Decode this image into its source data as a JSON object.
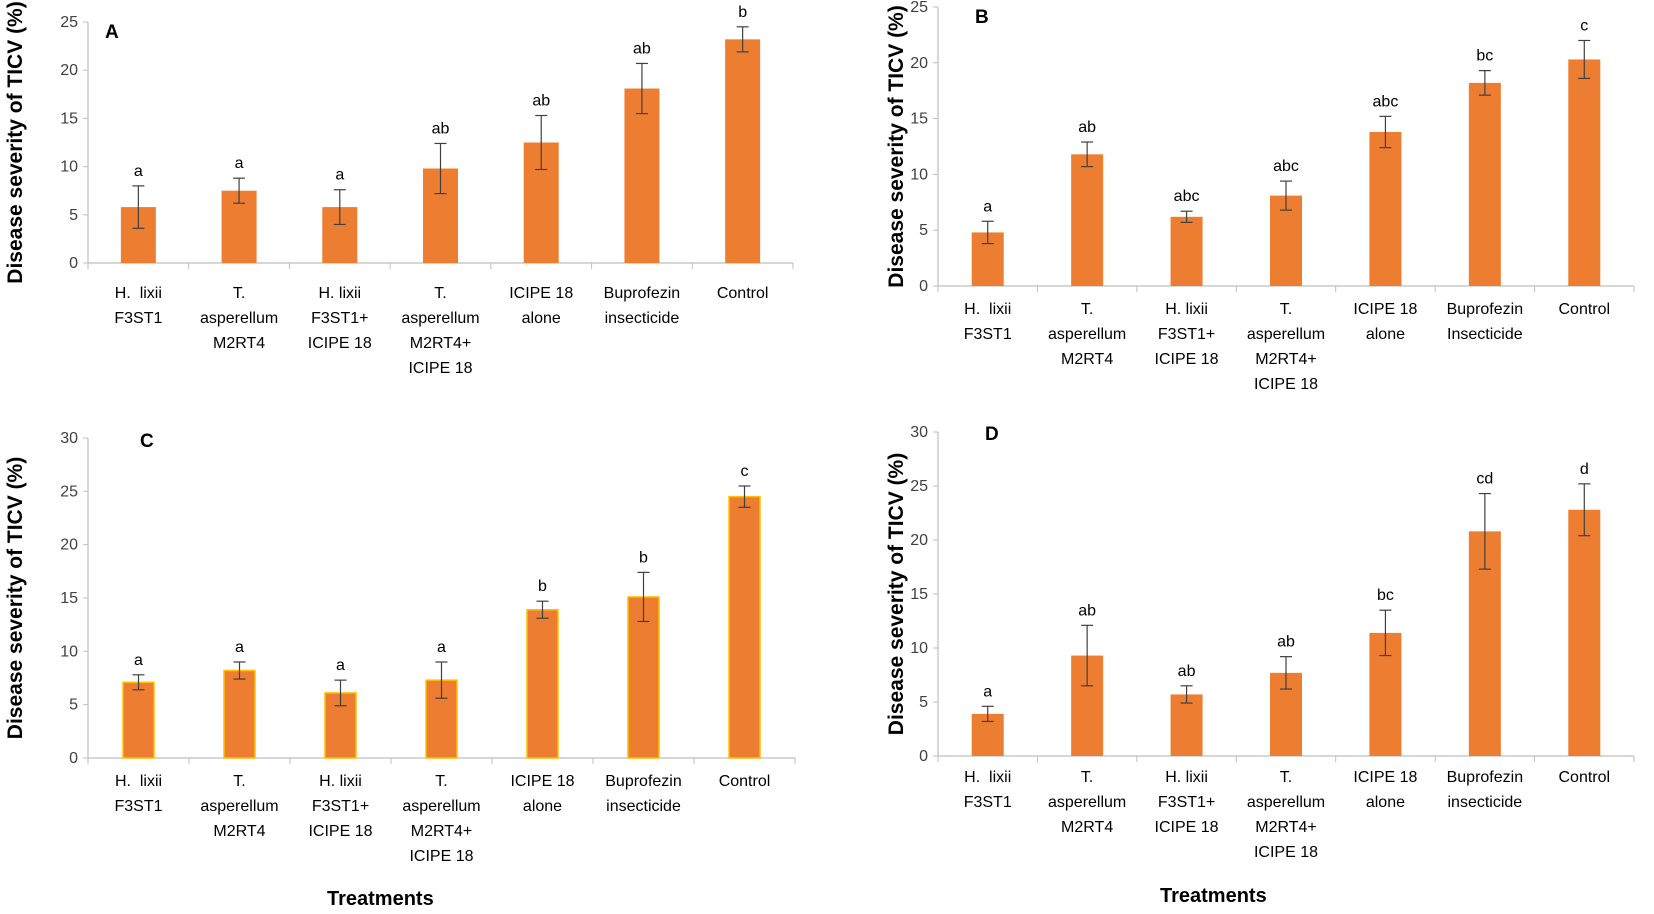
{
  "figure": {
    "bar_color": "#ED7D31",
    "bar_edge_color_C": "#FFC000",
    "x_title": "Treatments",
    "y_title_A": "Disease severity of TICV  (%)",
    "y_title": "Disease severity of TICV (%)"
  },
  "chart_data": [
    {
      "panel": "A",
      "type": "bar",
      "ylabel": "Disease severity of TICV  (%)",
      "xlabel": "",
      "ylim": [
        0,
        25
      ],
      "yticks": [
        0,
        5,
        10,
        15,
        20,
        25
      ],
      "categories": [
        [
          "H.  lixii",
          "F3ST1"
        ],
        [
          "T.",
          "asperellum",
          "M2RT4"
        ],
        [
          "H. lixii",
          "F3ST1+",
          "ICIPE 18"
        ],
        [
          "T.",
          "asperellum",
          "M2RT4+",
          "ICIPE 18"
        ],
        [
          "ICIPE 18",
          "alone"
        ],
        [
          "Buprofezin",
          "insecticide"
        ],
        [
          "Control"
        ]
      ],
      "values": [
        5.8,
        7.5,
        5.8,
        9.8,
        12.5,
        18.1,
        23.2
      ],
      "errors": [
        2.2,
        1.3,
        1.8,
        2.6,
        2.8,
        2.6,
        1.3
      ],
      "letters": [
        "a",
        "a",
        "a",
        "ab",
        "ab",
        "ab",
        "b"
      ]
    },
    {
      "panel": "B",
      "type": "bar",
      "ylabel": "Disease severity of TICV (%)",
      "xlabel": "",
      "ylim": [
        0,
        25
      ],
      "yticks": [
        0,
        5,
        10,
        15,
        20,
        25
      ],
      "categories": [
        [
          "H.  lixii",
          "F3ST1"
        ],
        [
          "T.",
          "asperellum",
          "M2RT4"
        ],
        [
          "H. lixii",
          "F3ST1+",
          "ICIPE 18"
        ],
        [
          "T.",
          "asperellum",
          "M2RT4+",
          "ICIPE 18"
        ],
        [
          "ICIPE 18",
          "alone"
        ],
        [
          "Buprofezin",
          "Insecticide"
        ],
        [
          "Control"
        ]
      ],
      "values": [
        4.8,
        11.8,
        6.2,
        8.1,
        13.8,
        18.2,
        20.3
      ],
      "errors": [
        1.0,
        1.1,
        0.5,
        1.3,
        1.4,
        1.1,
        1.7
      ],
      "letters": [
        "a",
        "ab",
        "abc",
        "abc",
        "abc",
        "bc",
        "c"
      ]
    },
    {
      "panel": "C",
      "type": "bar",
      "ylabel": "Disease severity of TICV (%)",
      "xlabel": "Treatments",
      "ylim": [
        0,
        30
      ],
      "yticks": [
        0,
        5,
        10,
        15,
        20,
        25,
        30
      ],
      "categories": [
        [
          "H.  lixii",
          "F3ST1"
        ],
        [
          "T.",
          "asperellum",
          "M2RT4"
        ],
        [
          "H. lixii",
          "F3ST1+",
          "ICIPE 18"
        ],
        [
          "T.",
          "asperellum",
          "M2RT4+",
          "ICIPE 18"
        ],
        [
          "ICIPE 18",
          "alone"
        ],
        [
          "Buprofezin",
          "insecticide"
        ],
        [
          "Control"
        ]
      ],
      "values": [
        7.1,
        8.2,
        6.1,
        7.3,
        13.9,
        15.1,
        24.5
      ],
      "errors": [
        0.7,
        0.8,
        1.2,
        1.7,
        0.8,
        2.3,
        1.0
      ],
      "letters": [
        "a",
        "a",
        "a",
        "a",
        "b",
        "b",
        "c"
      ]
    },
    {
      "panel": "D",
      "type": "bar",
      "ylabel": "Disease severity of TICV (%)",
      "xlabel": "Treatments",
      "ylim": [
        0,
        30
      ],
      "yticks": [
        0,
        5,
        10,
        15,
        20,
        25,
        30
      ],
      "categories": [
        [
          "H.  lixii",
          "F3ST1"
        ],
        [
          "T.",
          "asperellum",
          "M2RT4"
        ],
        [
          "H. lixii",
          "F3ST1+",
          "ICIPE 18"
        ],
        [
          "T.",
          "asperellum",
          "M2RT4+",
          "ICIPE 18"
        ],
        [
          "ICIPE 18",
          "alone"
        ],
        [
          "Buprofezin",
          "insecticide"
        ],
        [
          "Control"
        ]
      ],
      "values": [
        3.9,
        9.3,
        5.7,
        7.7,
        11.4,
        20.8,
        22.8
      ],
      "errors": [
        0.7,
        2.8,
        0.8,
        1.5,
        2.1,
        3.5,
        2.4
      ],
      "letters": [
        "a",
        "ab",
        "ab",
        "ab",
        "bc",
        "cd",
        "d"
      ]
    }
  ]
}
